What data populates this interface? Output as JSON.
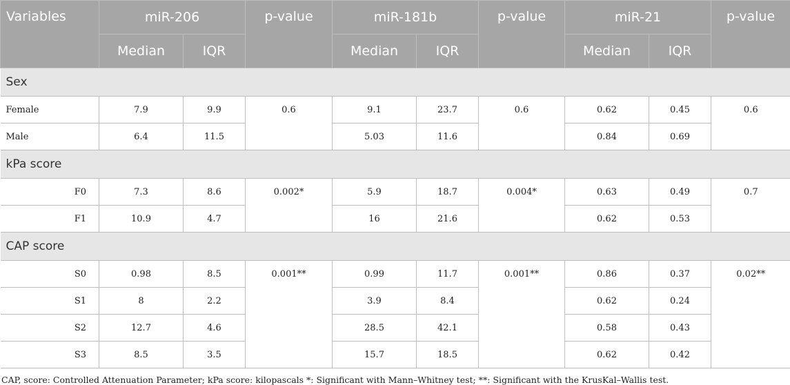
{
  "table": {
    "header": {
      "variables": "Variables",
      "groups": [
        {
          "name": "miR-206",
          "median": "Median",
          "iqr": "IQR",
          "p": "p-value"
        },
        {
          "name": "miR-181b",
          "median": "Median",
          "iqr": "IQR",
          "p": "p-value"
        },
        {
          "name": "miR-21",
          "median": "Median",
          "iqr": "IQR",
          "p": "p-value"
        }
      ]
    },
    "sections": [
      {
        "title": "Sex",
        "p_values": [
          0.6,
          0.6,
          0.6
        ],
        "rows": [
          {
            "label": "Female",
            "values": [
              7.9,
              9.9,
              9.1,
              23.7,
              0.62,
              0.45
            ]
          },
          {
            "label": "Male",
            "values": [
              6.4,
              11.5,
              5.03,
              11.6,
              0.84,
              0.69
            ]
          }
        ]
      },
      {
        "title": "kPa score",
        "p_values": [
          "0.002*",
          "0.004*",
          0.7
        ],
        "rows": [
          {
            "label": "F0",
            "values": [
              7.3,
              8.6,
              5.9,
              18.7,
              0.63,
              0.49
            ]
          },
          {
            "label": "F1",
            "values": [
              10.9,
              4.7,
              16,
              21.6,
              0.62,
              0.53
            ]
          }
        ]
      },
      {
        "title": "CAP score",
        "p_values": [
          "0.001**",
          "0.001**",
          "0.02**"
        ],
        "rows": [
          {
            "label": "S0",
            "values": [
              0.98,
              8.5,
              0.99,
              11.7,
              0.86,
              0.37
            ]
          },
          {
            "label": "S1",
            "values": [
              8,
              2.2,
              3.9,
              8.4,
              0.62,
              0.24
            ]
          },
          {
            "label": "S2",
            "values": [
              12.7,
              4.6,
              28.5,
              42.1,
              0.58,
              0.43
            ]
          },
          {
            "label": "S3",
            "values": [
              8.5,
              3.5,
              15.7,
              18.5,
              0.62,
              0.42
            ]
          }
        ]
      }
    ],
    "footnote": "CAP, score: Controlled Attenuation Parameter; kPa score: kilopascals *: Significant with Mann–Whitney test; **: Significant with the KrusKal–Wallis test."
  }
}
